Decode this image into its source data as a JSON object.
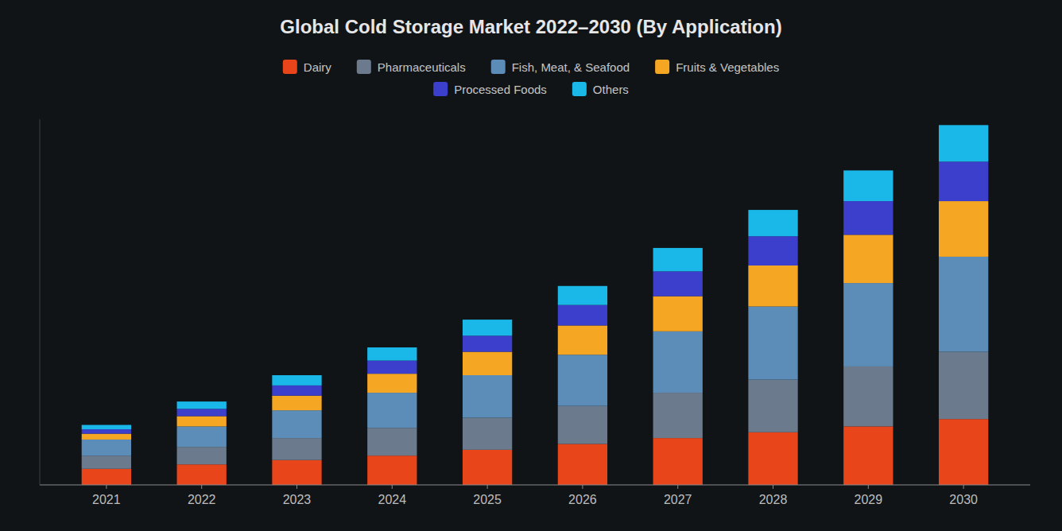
{
  "chart_data": {
    "type": "bar",
    "stacked": true,
    "title": "Global Cold Storage Market 2022–2030 (By Application)",
    "x": [
      2021,
      2022,
      2023,
      2024,
      2025,
      2026,
      2027,
      2028,
      2029,
      2030
    ],
    "xlim": [
      2020.3,
      2030.7
    ],
    "xticks": [
      2021,
      2022,
      2023,
      2024,
      2025,
      2026,
      2027,
      2028,
      2029,
      2030
    ],
    "ylim": [
      0,
      250
    ],
    "tick_labels": "x",
    "grid": false,
    "legend": "top",
    "series": [
      {
        "name": "Dairy",
        "color": "#E8451A",
        "values": [
          11,
          14,
          17,
          20,
          24,
          28,
          32,
          36,
          40,
          45
        ]
      },
      {
        "name": "Pharmaceuticals",
        "color": "#6B7B8D",
        "values": [
          9,
          12,
          15,
          19,
          22,
          26,
          31,
          36,
          41,
          46
        ]
      },
      {
        "name": "Fish, Meat, & Seafood",
        "color": "#5B8DB8",
        "values": [
          11,
          14,
          19,
          24,
          29,
          35,
          42,
          50,
          57,
          65
        ]
      },
      {
        "name": "Fruits & Vegetables",
        "color": "#F5A623",
        "values": [
          4,
          7,
          10,
          13,
          16,
          20,
          24,
          28,
          33,
          38
        ]
      },
      {
        "name": "Processed Foods",
        "color": "#3B3FCB",
        "values": [
          3,
          5,
          7,
          9,
          11,
          14,
          17,
          20,
          23,
          27
        ]
      },
      {
        "name": "Others",
        "color": "#1AB8E8",
        "values": [
          3,
          5,
          7,
          9,
          11,
          13,
          16,
          18,
          21,
          25
        ]
      }
    ]
  }
}
